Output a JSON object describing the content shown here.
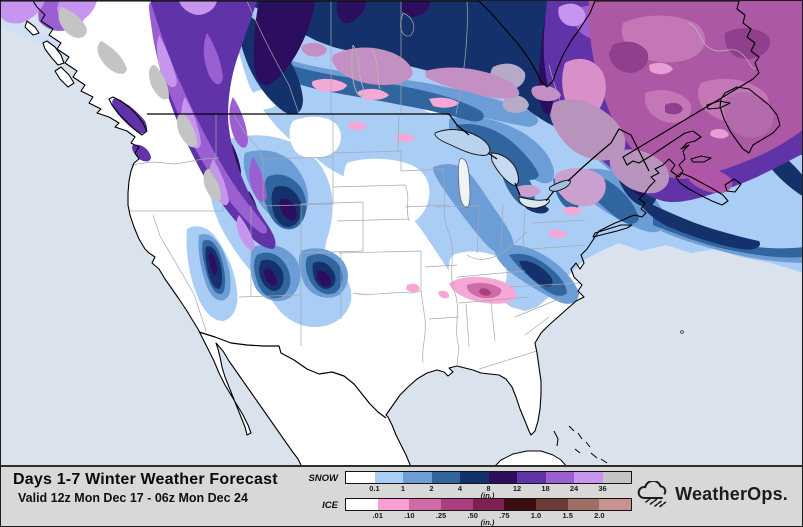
{
  "header": {
    "title": "Days 1-7 Winter Weather Forecast",
    "valid": "Valid 12z Mon Dec 17 - 06z Mon Dec 24"
  },
  "legend": {
    "snow": {
      "label": "SNOW",
      "unit": "(in.)",
      "colors": [
        "#ffffff",
        "#a9cdf5",
        "#6d9dd6",
        "#30659f",
        "#15316b",
        "#2c0e60",
        "#6133a8",
        "#9a5fd0",
        "#c795ef",
        "#c4c4c4"
      ],
      "ticks": [
        "0.1",
        "1",
        "2",
        "4",
        "8",
        "12",
        "18",
        "24",
        "36"
      ]
    },
    "ice": {
      "label": "ICE",
      "unit": "(in.)",
      "colors": [
        "#ffffff",
        "#f99fd3",
        "#cf6ba6",
        "#a93f7e",
        "#7e2052",
        "#3c0d13",
        "#6f3b36",
        "#9e6f65",
        "#c79290"
      ],
      "ticks": [
        ".01",
        ".10",
        ".25",
        ".50",
        ".75",
        "1.0",
        "1.5",
        "2.0"
      ]
    }
  },
  "branding": {
    "logo_text": "WeatherOps."
  },
  "map": {
    "ocean_color": "#dae2ed",
    "land_color": "#ffffff",
    "coast_color": "#000000",
    "state_border_color": "#a3a9b0"
  }
}
